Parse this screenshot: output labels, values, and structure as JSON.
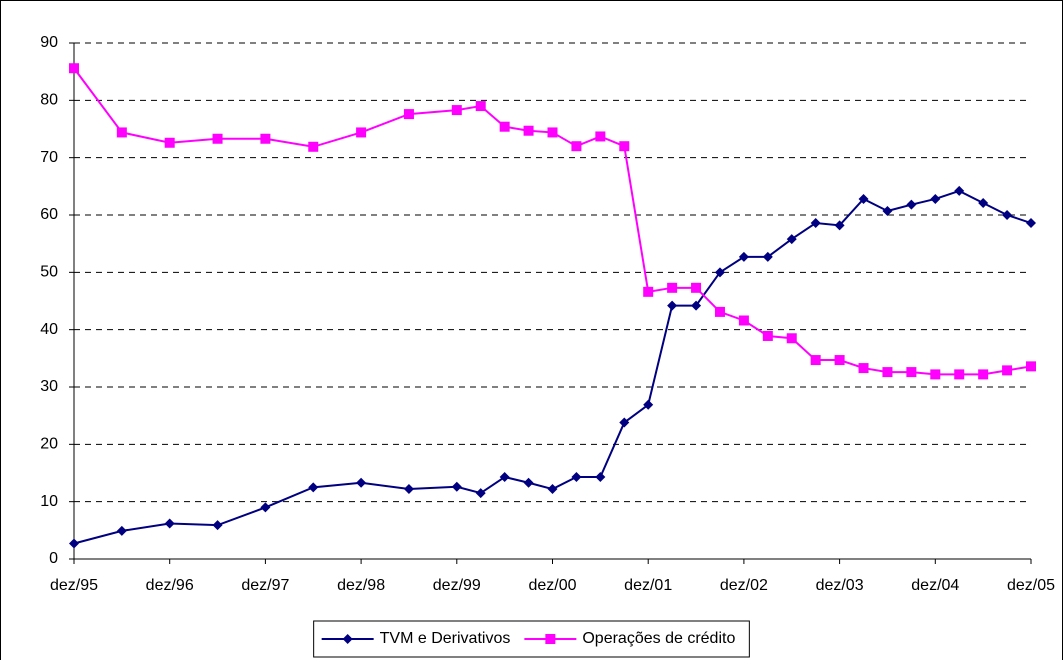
{
  "chart_data": {
    "type": "line",
    "x": [
      0,
      2,
      4,
      6,
      8,
      10,
      12,
      14,
      16,
      17,
      18,
      19,
      20,
      21,
      22,
      23,
      24,
      25,
      26,
      27,
      28,
      29,
      30,
      31,
      32,
      33,
      34,
      35,
      36,
      37,
      38,
      39,
      40
    ],
    "xlim": [
      0,
      40
    ],
    "xticks": [
      {
        "value": 0,
        "label": "dez/95"
      },
      {
        "value": 4,
        "label": "dez/96"
      },
      {
        "value": 8,
        "label": "dez/97"
      },
      {
        "value": 12,
        "label": "dez/98"
      },
      {
        "value": 16,
        "label": "dez/99"
      },
      {
        "value": 20,
        "label": "dez/00"
      },
      {
        "value": 24,
        "label": "dez/01"
      },
      {
        "value": 28,
        "label": "dez/02"
      },
      {
        "value": 32,
        "label": "dez/03"
      },
      {
        "value": 36,
        "label": "dez/04"
      },
      {
        "value": 40,
        "label": "dez/05"
      }
    ],
    "ylim": [
      0,
      90
    ],
    "yticks": [
      0,
      10,
      20,
      30,
      40,
      50,
      60,
      70,
      80,
      90
    ],
    "grid": true,
    "legend": "bottom",
    "series": [
      {
        "name": "TVM e Derivativos",
        "color": "#000080",
        "marker": "diamond",
        "values": [
          2.7,
          4.9,
          6.2,
          5.9,
          9.0,
          12.5,
          13.3,
          12.2,
          12.6,
          11.5,
          14.3,
          13.3,
          12.2,
          14.3,
          14.3,
          23.8,
          26.9,
          44.2,
          44.2,
          50.0,
          52.7,
          52.7,
          55.8,
          58.6,
          58.2,
          62.8,
          60.7,
          61.8,
          62.8,
          64.2,
          62.1,
          60.0,
          58.6
        ]
      },
      {
        "name": "Operações de crédito",
        "color": "#FF00FF",
        "marker": "square",
        "values": [
          85.6,
          74.4,
          72.6,
          73.3,
          73.3,
          71.9,
          74.4,
          77.6,
          78.3,
          79.0,
          75.4,
          74.7,
          74.4,
          72.0,
          73.7,
          72.0,
          46.6,
          47.3,
          47.3,
          43.1,
          41.6,
          38.9,
          38.5,
          34.7,
          34.7,
          33.3,
          32.6,
          32.6,
          32.2,
          32.2,
          32.2,
          32.9,
          33.6
        ]
      }
    ]
  }
}
